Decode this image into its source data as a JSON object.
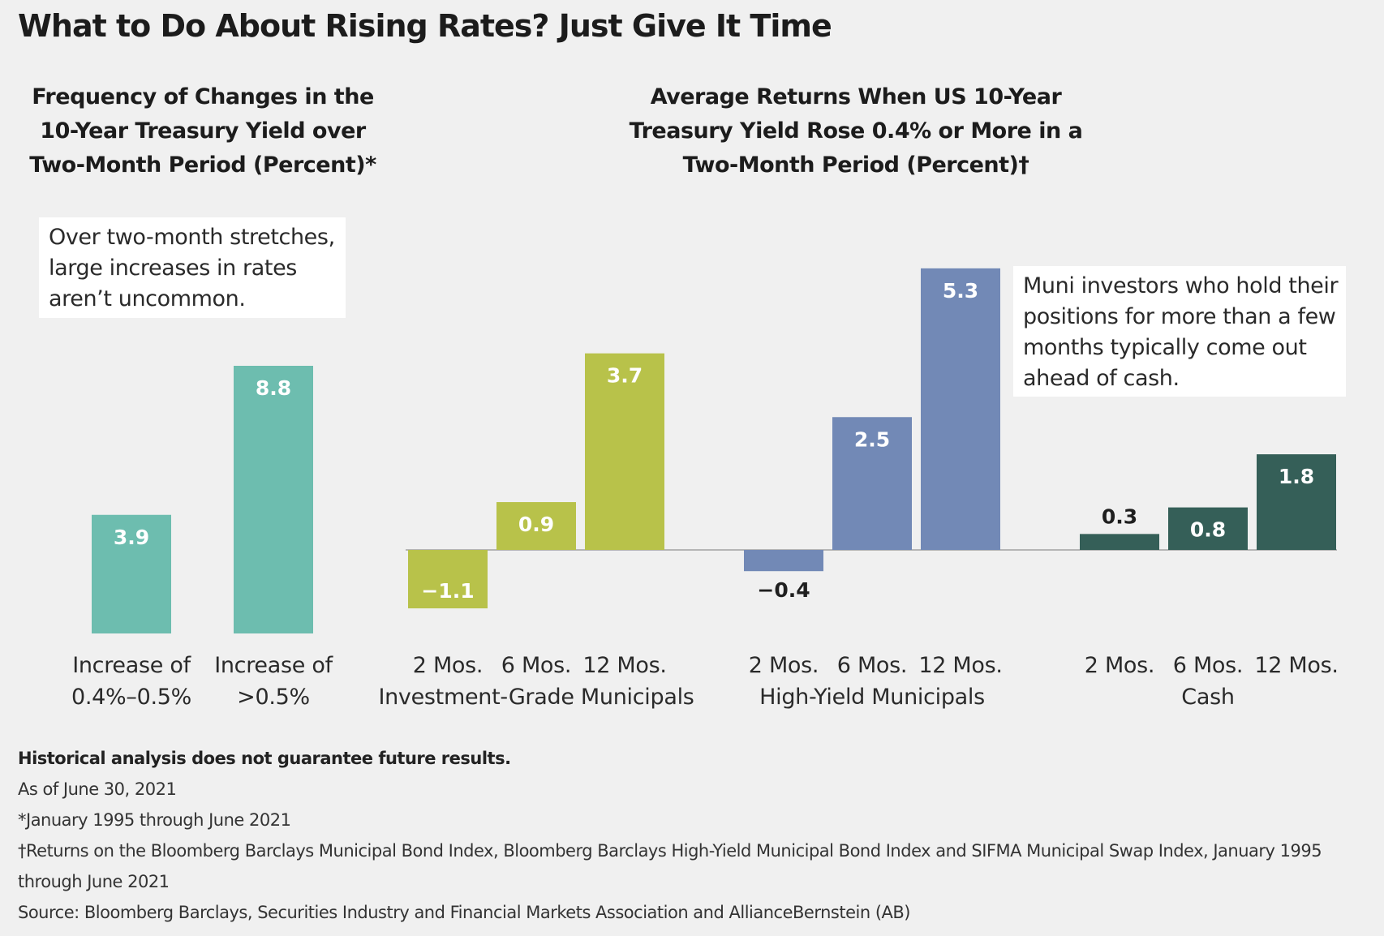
{
  "title": "What to Do About Rising Rates? Just Give It Time",
  "left_subtitle": [
    "Frequency of Changes in the",
    "10-Year Treasury Yield over",
    "Two-Month Period (Percent)*"
  ],
  "right_subtitle": [
    "Average Returns When US 10-Year",
    "Treasury Yield Rose 0.4% or More in a",
    "Two-Month Period (Percent)†"
  ],
  "callout_left": [
    "Over two-month stretches,",
    "large increases in rates",
    "aren’t uncommon."
  ],
  "callout_right": [
    "Muni investors who hold their",
    "positions for more than a few",
    "months typically come out",
    "ahead of cash."
  ],
  "chart_data": [
    {
      "type": "bar",
      "categories": [
        [
          "Increase of",
          "0.4%–0.5%"
        ],
        [
          "Increase of",
          ">0.5%"
        ]
      ],
      "values": [
        3.9,
        8.8
      ],
      "value_labels": [
        "3.9",
        "8.8"
      ],
      "color": "#6dbdaf"
    },
    {
      "type": "bar",
      "categories": [
        "2 Mos.",
        "6 Mos.",
        "12 Mos."
      ],
      "series": [
        {
          "name": "Investment-Grade Municipals",
          "values": [
            -1.1,
            0.9,
            3.7
          ],
          "value_labels": [
            "−1.1",
            "0.9",
            "3.7"
          ],
          "color": "#b8c24a"
        },
        {
          "name": "High-Yield Municipals",
          "values": [
            -0.4,
            2.5,
            5.3
          ],
          "value_labels": [
            "−0.4",
            "2.5",
            "5.3"
          ],
          "color": "#7289b6"
        },
        {
          "name": "Cash",
          "values": [
            0.3,
            0.8,
            1.8
          ],
          "value_labels": [
            "0.3",
            "0.8",
            "1.8"
          ],
          "color": "#355f58"
        }
      ]
    }
  ],
  "footnotes": {
    "disclaimer": "Historical analysis does not guarantee future results.",
    "asof": "As of June 30, 2021",
    "star": "*January 1995 through June 2021",
    "dagger_line1": "†Returns on the Bloomberg Barclays Municipal Bond Index, Bloomberg Barclays High-Yield Municipal Bond Index and SIFMA Municipal Swap Index, January 1995",
    "dagger_line2": "through June 2021",
    "source": "Source: Bloomberg Barclays, Securities Industry and Financial Markets Association and AllianceBernstein (AB)"
  }
}
